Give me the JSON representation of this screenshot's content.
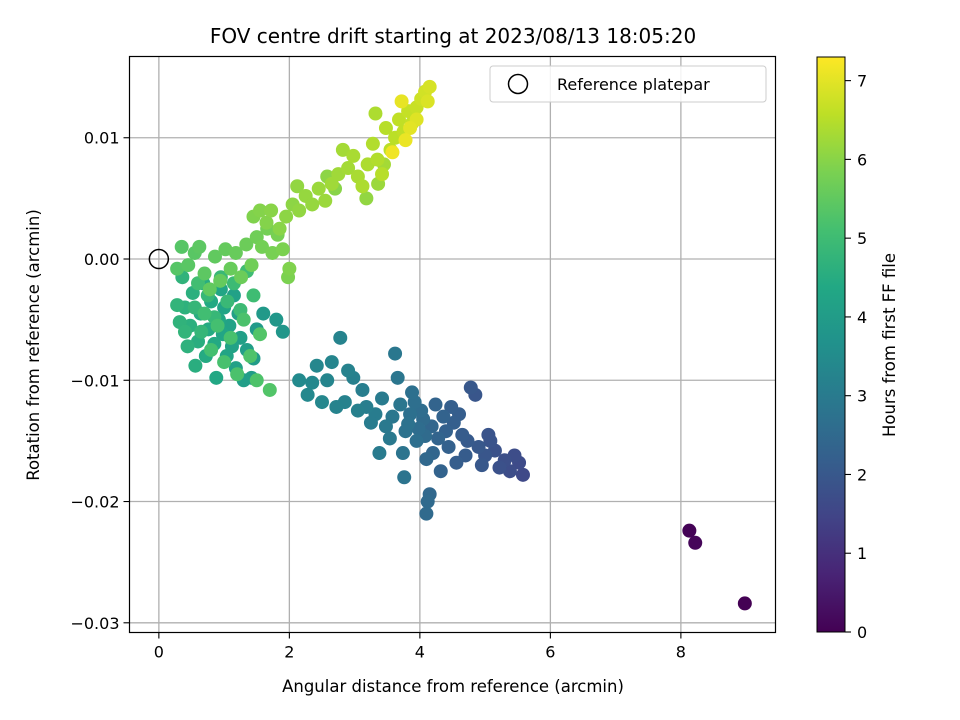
{
  "chart_data": {
    "type": "scatter",
    "title": "FOV centre drift starting at 2023/08/13 18:05:20",
    "xlabel": "Angular distance from reference (arcmin)",
    "ylabel": "Rotation from reference (arcmin)",
    "xlim": [
      -0.45,
      9.45
    ],
    "ylim": [
      -0.0308,
      0.0167
    ],
    "xticks": [
      0,
      2,
      4,
      6,
      8
    ],
    "xtick_labels": [
      "0",
      "2",
      "4",
      "6",
      "8"
    ],
    "yticks": [
      -0.03,
      -0.02,
      -0.01,
      0.0,
      0.01
    ],
    "ytick_labels": [
      "−0.03",
      "−0.02",
      "−0.01",
      "0.00",
      "0.01"
    ],
    "grid": true,
    "legend": {
      "placement": "top-right",
      "entries": [
        "Reference platepar"
      ]
    },
    "reference_point": {
      "x": 0,
      "y": 0
    },
    "colorbar": {
      "label": "Hours from first FF file",
      "range": [
        0,
        7.3
      ],
      "ticks": [
        0,
        1,
        2,
        3,
        4,
        5,
        6,
        7
      ],
      "tick_labels": [
        "0",
        "1",
        "2",
        "3",
        "4",
        "5",
        "6",
        "7"
      ],
      "colormap": "viridis"
    },
    "points_columns": [
      "x",
      "y",
      "hours"
    ],
    "points": [
      [
        8.98,
        -0.0284,
        0.0
      ],
      [
        8.13,
        -0.0224,
        0.05
      ],
      [
        8.22,
        -0.0234,
        0.1
      ],
      [
        5.58,
        -0.0178,
        1.6
      ],
      [
        5.52,
        -0.0168,
        1.65
      ],
      [
        5.45,
        -0.0162,
        1.7
      ],
      [
        5.38,
        -0.0175,
        1.7
      ],
      [
        5.3,
        -0.0166,
        1.75
      ],
      [
        5.22,
        -0.0172,
        1.8
      ],
      [
        5.15,
        -0.0158,
        1.85
      ],
      [
        5.08,
        -0.015,
        1.9
      ],
      [
        5.05,
        -0.0145,
        1.9
      ],
      [
        5.0,
        -0.0162,
        1.95
      ],
      [
        4.95,
        -0.017,
        2.0
      ],
      [
        4.9,
        -0.0155,
        2.0
      ],
      [
        4.85,
        -0.0112,
        1.95
      ],
      [
        4.78,
        -0.0106,
        2.0
      ],
      [
        4.73,
        -0.015,
        2.05
      ],
      [
        4.7,
        -0.0162,
        2.1
      ],
      [
        4.65,
        -0.0145,
        2.1
      ],
      [
        4.6,
        -0.0128,
        2.15
      ],
      [
        4.56,
        -0.0168,
        2.15
      ],
      [
        4.52,
        -0.0135,
        2.2
      ],
      [
        4.48,
        -0.0122,
        2.2
      ],
      [
        4.44,
        -0.0155,
        2.25
      ],
      [
        4.4,
        -0.0142,
        2.25
      ],
      [
        4.36,
        -0.013,
        2.3
      ],
      [
        4.32,
        -0.0175,
        2.3
      ],
      [
        4.28,
        -0.0148,
        2.35
      ],
      [
        4.24,
        -0.012,
        2.35
      ],
      [
        4.2,
        -0.016,
        2.4
      ],
      [
        4.18,
        -0.0138,
        2.4
      ],
      [
        4.15,
        -0.0194,
        2.45
      ],
      [
        4.12,
        -0.02,
        2.5
      ],
      [
        4.1,
        -0.021,
        2.5
      ],
      [
        4.1,
        -0.0165,
        2.45
      ],
      [
        4.08,
        -0.0146,
        2.55
      ],
      [
        4.05,
        -0.0132,
        2.55
      ],
      [
        4.02,
        -0.0125,
        2.6
      ],
      [
        3.98,
        -0.014,
        2.6
      ],
      [
        3.95,
        -0.015,
        2.65
      ],
      [
        3.92,
        -0.0118,
        2.65
      ],
      [
        3.88,
        -0.011,
        2.7
      ],
      [
        3.85,
        -0.0128,
        2.7
      ],
      [
        3.82,
        -0.0136,
        2.75
      ],
      [
        3.78,
        -0.0142,
        2.75
      ],
      [
        3.76,
        -0.018,
        2.8
      ],
      [
        3.74,
        -0.016,
        2.8
      ],
      [
        3.7,
        -0.012,
        2.85
      ],
      [
        3.66,
        -0.0098,
        2.85
      ],
      [
        3.62,
        -0.0078,
        2.9
      ],
      [
        3.58,
        -0.013,
        2.9
      ],
      [
        3.54,
        -0.0148,
        2.95
      ],
      [
        3.48,
        -0.0138,
        2.95
      ],
      [
        3.42,
        -0.0115,
        3.0
      ],
      [
        3.38,
        -0.016,
        3.0
      ],
      [
        3.32,
        -0.0128,
        3.05
      ],
      [
        3.25,
        -0.0135,
        3.05
      ],
      [
        3.18,
        -0.0122,
        3.1
      ],
      [
        3.12,
        -0.0108,
        3.1
      ],
      [
        3.05,
        -0.0125,
        3.15
      ],
      [
        2.98,
        -0.0098,
        3.15
      ],
      [
        2.9,
        -0.0092,
        3.2
      ],
      [
        2.85,
        -0.0118,
        3.2
      ],
      [
        2.78,
        -0.0065,
        3.25
      ],
      [
        2.72,
        -0.0122,
        3.25
      ],
      [
        2.65,
        -0.0085,
        3.3
      ],
      [
        2.58,
        -0.01,
        3.3
      ],
      [
        2.5,
        -0.0118,
        3.35
      ],
      [
        2.42,
        -0.0088,
        3.35
      ],
      [
        2.35,
        -0.0102,
        3.4
      ],
      [
        2.28,
        -0.0112,
        3.4
      ],
      [
        2.15,
        -0.01,
        3.45
      ],
      [
        1.9,
        -0.006,
        3.8
      ],
      [
        1.8,
        -0.005,
        3.85
      ],
      [
        1.6,
        -0.0045,
        3.9
      ],
      [
        1.5,
        -0.0058,
        3.95
      ],
      [
        1.45,
        -0.0082,
        4.0
      ],
      [
        1.42,
        -0.0098,
        4.0
      ],
      [
        1.35,
        -0.0075,
        4.05
      ],
      [
        1.3,
        -0.01,
        4.05
      ],
      [
        1.25,
        -0.0065,
        4.1
      ],
      [
        1.22,
        -0.0045,
        4.1
      ],
      [
        1.18,
        -0.009,
        4.15
      ],
      [
        1.15,
        -0.003,
        4.15
      ],
      [
        1.12,
        -0.0072,
        4.2
      ],
      [
        1.08,
        -0.0055,
        4.2
      ],
      [
        1.04,
        -0.008,
        4.25
      ],
      [
        1.0,
        -0.004,
        4.25
      ],
      [
        0.98,
        -0.0062,
        4.3
      ],
      [
        0.95,
        -0.0025,
        4.3
      ],
      [
        0.92,
        -0.005,
        4.35
      ],
      [
        0.88,
        -0.0098,
        4.35
      ],
      [
        0.85,
        -0.007,
        4.4
      ],
      [
        0.8,
        -0.0035,
        4.4
      ],
      [
        0.76,
        -0.0058,
        4.45
      ],
      [
        0.72,
        -0.008,
        4.45
      ],
      [
        0.68,
        -0.002,
        4.5
      ],
      [
        0.64,
        -0.0045,
        4.5
      ],
      [
        0.6,
        -0.0068,
        4.55
      ],
      [
        0.56,
        -0.0088,
        4.55
      ],
      [
        0.52,
        -0.0028,
        4.6
      ],
      [
        0.48,
        -0.0055,
        4.6
      ],
      [
        0.44,
        -0.0072,
        4.65
      ],
      [
        0.4,
        -0.004,
        4.65
      ],
      [
        0.36,
        -0.0015,
        4.7
      ],
      [
        0.32,
        -0.0052,
        4.7
      ],
      [
        0.28,
        -0.0038,
        4.75
      ],
      [
        0.4,
        -0.006,
        4.75
      ],
      [
        0.55,
        -0.004,
        4.8
      ],
      [
        0.65,
        -0.006,
        4.8
      ],
      [
        0.75,
        -0.003,
        4.85
      ],
      [
        0.85,
        -0.0048,
        4.85
      ],
      [
        0.95,
        -0.0015,
        4.9
      ],
      [
        1.05,
        -0.0035,
        4.9
      ],
      [
        1.15,
        -0.002,
        4.95
      ],
      [
        1.25,
        -0.0042,
        4.95
      ],
      [
        1.35,
        -0.001,
        5.0
      ],
      [
        1.45,
        -0.003,
        5.0
      ],
      [
        0.6,
        -0.002,
        5.05
      ],
      [
        0.7,
        -0.0045,
        5.05
      ],
      [
        0.8,
        -0.0075,
        5.1
      ],
      [
        0.9,
        -0.0055,
        5.1
      ],
      [
        1.0,
        -0.0085,
        5.15
      ],
      [
        1.1,
        -0.0065,
        5.15
      ],
      [
        1.2,
        -0.0095,
        5.2
      ],
      [
        1.3,
        -0.005,
        5.2
      ],
      [
        1.4,
        -0.008,
        5.25
      ],
      [
        1.5,
        -0.01,
        5.25
      ],
      [
        1.55,
        -0.0062,
        5.3
      ],
      [
        1.7,
        -0.0108,
        5.3
      ],
      [
        0.28,
        -0.0008,
        5.35
      ],
      [
        0.35,
        0.001,
        5.35
      ],
      [
        0.45,
        -0.0005,
        5.4
      ],
      [
        0.55,
        0.0005,
        5.4
      ],
      [
        0.62,
        0.001,
        5.45
      ],
      [
        0.7,
        -0.0012,
        5.45
      ],
      [
        0.78,
        -0.0025,
        5.5
      ],
      [
        0.86,
        0.0002,
        5.5
      ],
      [
        0.94,
        -0.0018,
        5.55
      ],
      [
        1.02,
        0.0008,
        5.55
      ],
      [
        1.1,
        -0.0008,
        5.6
      ],
      [
        1.18,
        0.0005,
        5.6
      ],
      [
        1.26,
        -0.0015,
        5.65
      ],
      [
        1.34,
        0.0012,
        5.65
      ],
      [
        1.42,
        -0.0005,
        5.7
      ],
      [
        1.5,
        0.0018,
        5.7
      ],
      [
        1.58,
        0.001,
        5.75
      ],
      [
        1.66,
        0.0025,
        5.75
      ],
      [
        1.74,
        0.0005,
        5.8
      ],
      [
        1.82,
        0.002,
        5.8
      ],
      [
        1.9,
        0.0008,
        5.85
      ],
      [
        1.98,
        -0.0015,
        5.85
      ],
      [
        2.0,
        -0.0008,
        5.9
      ],
      [
        1.45,
        0.0035,
        5.9
      ],
      [
        1.55,
        0.004,
        5.95
      ],
      [
        1.65,
        0.003,
        5.95
      ],
      [
        1.72,
        0.004,
        6.0
      ],
      [
        1.85,
        0.0025,
        6.0
      ],
      [
        1.95,
        0.0035,
        6.05
      ],
      [
        2.05,
        0.0045,
        6.05
      ],
      [
        2.15,
        0.004,
        6.1
      ],
      [
        2.12,
        0.006,
        6.1
      ],
      [
        2.25,
        0.0052,
        6.15
      ],
      [
        2.35,
        0.0045,
        6.15
      ],
      [
        2.45,
        0.0058,
        6.2
      ],
      [
        2.55,
        0.0048,
        6.2
      ],
      [
        2.65,
        0.0062,
        6.25
      ],
      [
        2.75,
        0.007,
        6.25
      ],
      [
        2.82,
        0.009,
        6.3
      ],
      [
        2.9,
        0.0075,
        6.3
      ],
      [
        2.98,
        0.0085,
        6.35
      ],
      [
        3.05,
        0.0068,
        6.35
      ],
      [
        3.12,
        0.006,
        6.4
      ],
      [
        3.2,
        0.0078,
        6.4
      ],
      [
        3.28,
        0.0095,
        6.45
      ],
      [
        3.35,
        0.0082,
        6.45
      ],
      [
        3.42,
        0.007,
        6.5
      ],
      [
        3.48,
        0.0108,
        6.5
      ],
      [
        3.55,
        0.009,
        6.55
      ],
      [
        3.62,
        0.01,
        6.55
      ],
      [
        3.68,
        0.0115,
        6.6
      ],
      [
        3.75,
        0.0105,
        6.6
      ],
      [
        3.82,
        0.0122,
        6.65
      ],
      [
        3.88,
        0.0112,
        6.65
      ],
      [
        3.95,
        0.0125,
        6.7
      ],
      [
        4.02,
        0.0132,
        6.75
      ],
      [
        4.08,
        0.0138,
        6.8
      ],
      [
        4.15,
        0.0142,
        6.85
      ],
      [
        4.12,
        0.013,
        6.9
      ],
      [
        3.95,
        0.0115,
        6.95
      ],
      [
        3.85,
        0.0108,
        7.0
      ],
      [
        3.72,
        0.013,
        7.05
      ],
      [
        3.78,
        0.0098,
        7.1
      ],
      [
        3.58,
        0.0088,
        7.15
      ],
      [
        3.45,
        0.0078,
        6.3
      ],
      [
        3.36,
        0.0062,
        6.2
      ],
      [
        3.32,
        0.012,
        6.4
      ],
      [
        3.18,
        0.005,
        6.1
      ],
      [
        2.7,
        0.0058,
        6.0
      ],
      [
        2.58,
        0.0068,
        6.05
      ]
    ]
  }
}
